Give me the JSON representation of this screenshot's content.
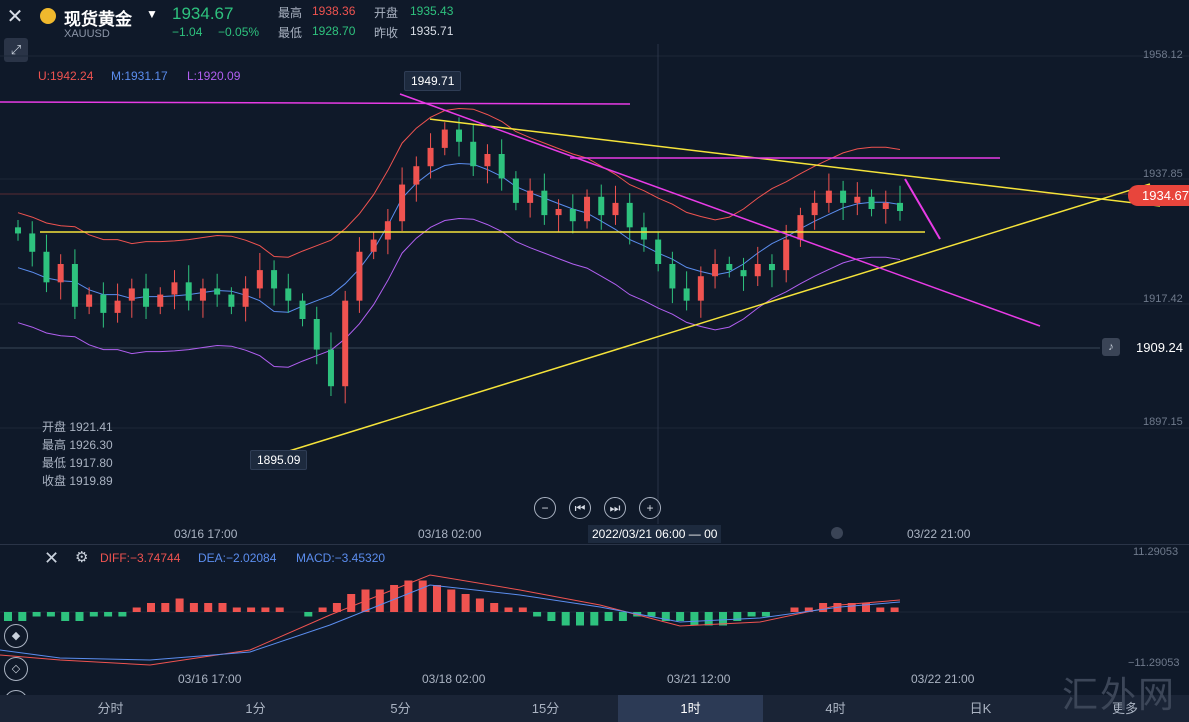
{
  "header": {
    "close_icon": "close-icon",
    "tool_icon": "draw-tool-icon",
    "coin_icon": "gold-coin-icon",
    "instrument_name": "现货黄金",
    "symbol": "XAUUSD",
    "last_price": "1934.67",
    "change": "−1.04",
    "change_pct": "−0.05%",
    "stats": {
      "high_label": "最高",
      "high_value": "1938.36",
      "open_label": "开盘",
      "open_value": "1935.43",
      "low_label": "最低",
      "low_value": "1928.70",
      "prev_label": "昨收",
      "prev_value": "1935.71"
    }
  },
  "bollinger": {
    "upper": "U:1942.24",
    "middle": "M:1931.17",
    "lower": "L:1920.09"
  },
  "ohlc_panel": {
    "open": "开盘 1921.41",
    "high": "最高 1926.30",
    "low": "最低 1917.80",
    "close": "收盘 1919.89"
  },
  "price_axis": [
    "1958.12",
    "1937.85",
    "1917.42",
    "1897.15"
  ],
  "current_price_tag": "1934.67",
  "alert_price": "1909.24",
  "callouts": {
    "high": "1949.71",
    "low": "1895.09"
  },
  "time_axis": [
    "03/16 17:00",
    "03/18 02:00",
    "03/22 21:00"
  ],
  "crosshair_time": "2022/03/21 06:00",
  "crosshair_tail": "00",
  "controls": [
    "minus",
    "rewind",
    "forward",
    "plus"
  ],
  "macd": {
    "diff": "DIFF:−3.74744",
    "dea": "DEA:−2.02084",
    "macd": "MACD:−3.45320",
    "axis_top": "11.29053",
    "axis_bottom": "−11.29053",
    "time_axis": [
      "03/16 17:00",
      "03/18 02:00",
      "03/21 12:00",
      "03/22 21:00"
    ]
  },
  "tabs": [
    "分时",
    "1分",
    "5分",
    "15分",
    "1时",
    "4时",
    "日K",
    "更多"
  ],
  "active_tab": "1时",
  "watermark": "汇外网",
  "colors": {
    "bg": "#0f1929",
    "up": "#ef5350",
    "down": "#2ec27e",
    "boll_upper": "#ef5350",
    "boll_mid": "#5b8dee",
    "boll_lower": "#b15ff1",
    "trend_yellow": "#f5e33a",
    "trend_magenta": "#e83be6"
  },
  "chart_data": {
    "type": "candlestick",
    "ylim": [
      1890,
      1962
    ],
    "close_path": [
      1931,
      1928,
      1923,
      1926,
      1919,
      1921,
      1918,
      1920,
      1922,
      1919,
      1921,
      1923,
      1920,
      1922,
      1921,
      1919,
      1922,
      1925,
      1922,
      1920,
      1917,
      1912,
      1906,
      1920,
      1928,
      1930,
      1933,
      1939,
      1942,
      1945,
      1948,
      1946,
      1942,
      1944,
      1940,
      1936,
      1938,
      1934,
      1935,
      1933,
      1937,
      1934,
      1936,
      1932,
      1930,
      1926,
      1922,
      1920,
      1924,
      1926,
      1925,
      1924,
      1926,
      1925,
      1930,
      1934,
      1936,
      1938,
      1936,
      1937,
      1935,
      1936,
      1934.67
    ]
  }
}
